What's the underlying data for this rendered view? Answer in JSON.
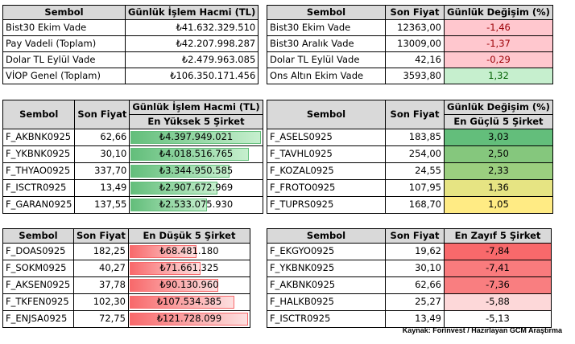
{
  "top_left": {
    "headers": [
      "Sembol",
      "Günlük İşlem Hacmi (TL)"
    ],
    "rows": [
      [
        "Bist30 Ekim Vade",
        "₺41.632.329.510"
      ],
      [
        "Pay Vadeli (Toplam)",
        "₺42.207.998.287"
      ],
      [
        "Dolar TL Eylül Vade",
        "₺2.479.963.085"
      ],
      [
        "VİOP Genel (Toplam)",
        "₺106.350.171.456"
      ]
    ]
  },
  "top_right": {
    "headers": [
      "Sembol",
      "Son Fiyat",
      "Günlük Değişim (%)"
    ],
    "rows": [
      {
        "symbol": "Bist30 Ekim Vade",
        "price": "12363,00",
        "change": "-1,46",
        "color": "#ffc7ce",
        "text_color": "#9c0006"
      },
      {
        "symbol": "Bist30 Aralık Vade",
        "price": "13009,00",
        "change": "-1,37",
        "color": "#ffc7ce",
        "text_color": "#9c0006"
      },
      {
        "symbol": "Dolar TL Eylül Vade",
        "price": "42,16",
        "change": "-0,29",
        "color": "#ffc7ce",
        "text_color": "#9c0006"
      },
      {
        "symbol": "Ons Altın Ekim Vade",
        "price": "3593,80",
        "change": "1,32",
        "color": "#c6efce",
        "text_color": "#006100"
      }
    ]
  },
  "mid_left": {
    "headers": [
      "Sembol",
      "Son Fiyat",
      "Günlük İşlem Hacmi (TL)"
    ],
    "subheader": "En Yüksek 5 Şirket",
    "rows": [
      {
        "symbol": "F_AKBNK0925",
        "price": "62,66",
        "volume": "₺4.397.949.021",
        "fill": 1.0
      },
      {
        "symbol": "F_YKBNK0925",
        "price": "30,10",
        "volume": "₺4.018.516.765",
        "fill": 0.91
      },
      {
        "symbol": "F_THYAO0925",
        "price": "337,70",
        "volume": "₺3.344.950.585",
        "fill": 0.76
      },
      {
        "symbol": "F_ISCTR0925",
        "price": "13,49",
        "volume": "₺2.907.672.969",
        "fill": 0.66
      },
      {
        "symbol": "F_GARAN0925",
        "price": "137,55",
        "volume": "₺2.533.075.930",
        "fill": 0.58
      }
    ]
  },
  "mid_right": {
    "headers": [
      "Sembol",
      "Son Fiyat",
      "Günlük Değişim (%)"
    ],
    "subheader": "En Güçlü 5 Şirket",
    "rows": [
      {
        "symbol": "F_ASELS0925",
        "price": "183,85",
        "change": "3,03",
        "color": "#63be7b"
      },
      {
        "symbol": "F_TAVHL0925",
        "price": "254,00",
        "change": "2,50",
        "color": "#85c77d"
      },
      {
        "symbol": "F_KOZAL0925",
        "price": "24,55",
        "change": "2,33",
        "color": "#9bcf7f"
      },
      {
        "symbol": "F_FROTO0925",
        "price": "107,95",
        "change": "1,36",
        "color": "#e6e483"
      },
      {
        "symbol": "F_TUPRS0925",
        "price": "168,70",
        "change": "1,05",
        "color": "#ffeb84"
      }
    ]
  },
  "bottom_left": {
    "headers": [
      "Sembol",
      "Son Fiyat",
      "En Düşük 5 Şirket"
    ],
    "rows": [
      {
        "symbol": "F_DOAS0925",
        "price": "182,25",
        "volume": "₺68.481.180",
        "fill": 0.56
      },
      {
        "symbol": "F_SOKM0925",
        "price": "40,27",
        "volume": "₺71.661.325",
        "fill": 0.59
      },
      {
        "symbol": "F_AKSEN0925",
        "price": "37,78",
        "volume": "₺90.130.960",
        "fill": 0.74
      },
      {
        "symbol": "F_TKFEN0925",
        "price": "102,30",
        "volume": "₺107.534.385",
        "fill": 0.88
      },
      {
        "symbol": "F_ENJSA0925",
        "price": "72,75",
        "volume": "₺121.728.099",
        "fill": 1.0
      }
    ]
  },
  "bottom_right": {
    "headers": [
      "Sembol",
      "Son Fiyat",
      "En Zayıf 5 Şirket"
    ],
    "rows": [
      {
        "symbol": "F_EKGYO0925",
        "price": "19,62",
        "change": "-7,84",
        "color": "#f8696b"
      },
      {
        "symbol": "F_YKBNK0925",
        "price": "30,10",
        "change": "-7,41",
        "color": "#f97b7d"
      },
      {
        "symbol": "F_AKBNK0925",
        "price": "62,66",
        "change": "-7,36",
        "color": "#f97e80"
      },
      {
        "symbol": "F_HALKB0925",
        "price": "25,27",
        "change": "-5,88",
        "color": "#fdd8d9"
      },
      {
        "symbol": "F_ISCTR0925",
        "price": "13,49",
        "change": "-5,13",
        "color": "#ffffff"
      }
    ]
  },
  "source": "Kaynak: Forinvest / Hazırlayan GCM Araştırma"
}
